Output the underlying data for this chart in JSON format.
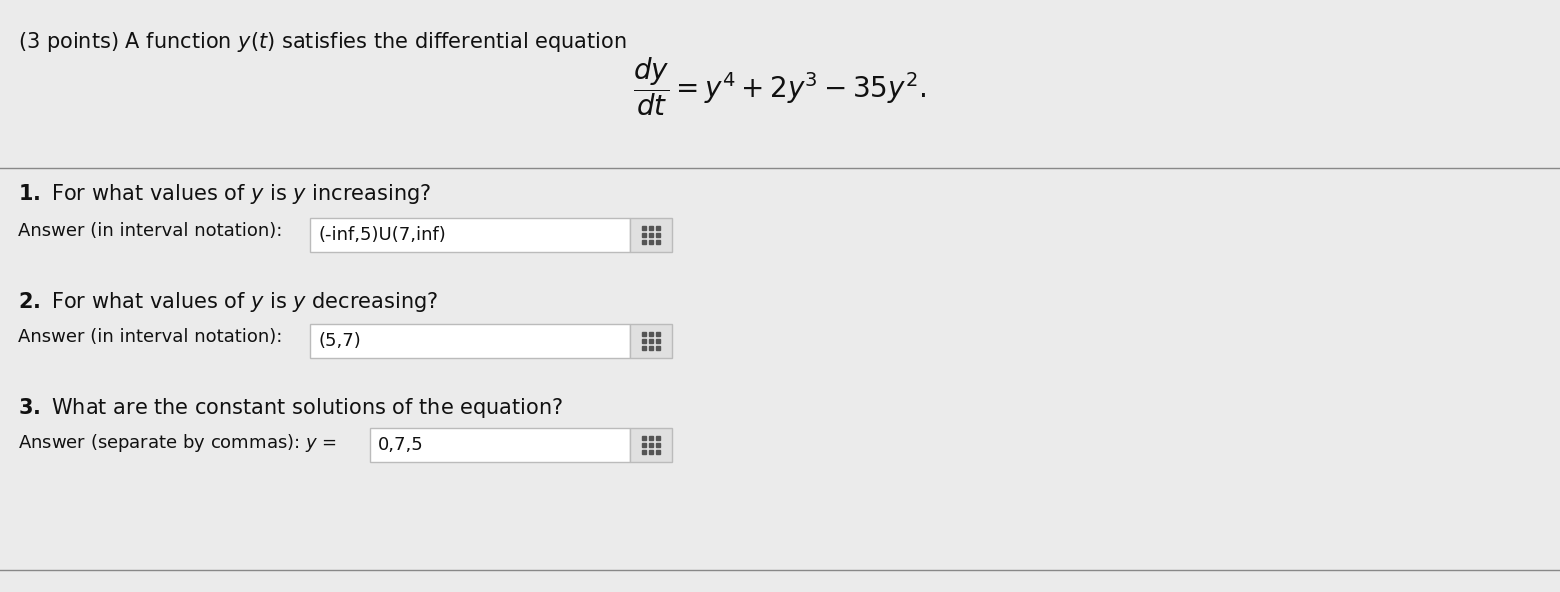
{
  "bg_color": "#ebebeb",
  "title_text": "(3 points) A function $y(t)$ satisfies the differential equation",
  "equation": "$\\dfrac{dy}{dt} = y^4 + 2y^3 - 35y^2.$",
  "a1_value": "(-inf,5)U(7,inf)",
  "a2_value": "(5,7)",
  "a3_value": "0,7,5",
  "box_bg": "#ffffff",
  "box_border": "#bbbbbb",
  "icon_bg": "#e0e0e0",
  "text_color": "#111111",
  "separator_color": "#888888",
  "font_size_title": 15,
  "font_size_eq": 20,
  "font_size_q": 15,
  "font_size_ans": 13
}
